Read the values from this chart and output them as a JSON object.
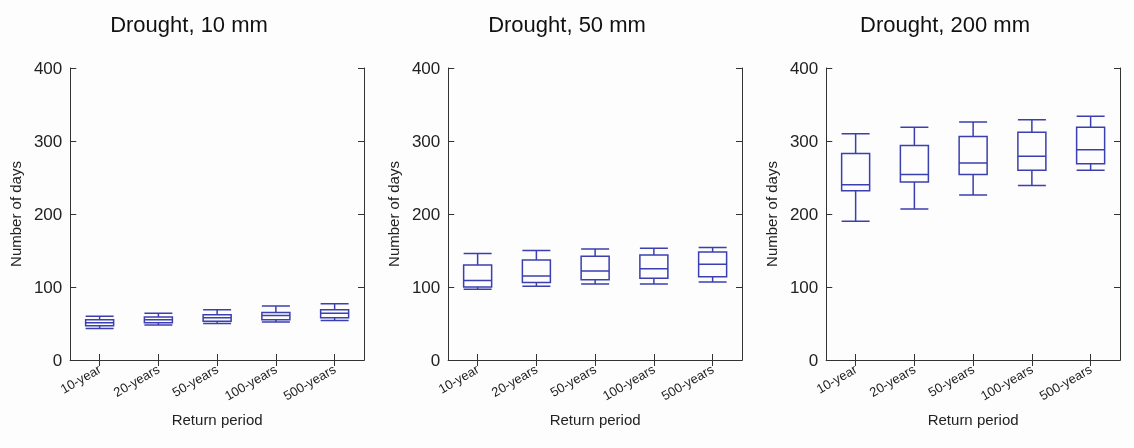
{
  "chart_data": [
    {
      "type": "box",
      "title": "Drought, 10 mm",
      "xlabel": "Return period",
      "ylabel": "Number of days",
      "categories": [
        "10-year",
        "20-years",
        "50-years",
        "100-years",
        "500-years"
      ],
      "ylim": [
        0,
        400
      ],
      "yticks": [
        0,
        100,
        200,
        300,
        400
      ],
      "grid": false,
      "series": [
        {
          "color": "#3b3fb0",
          "boxes": [
            {
              "low": 43,
              "q1": 47,
              "median": 51,
              "q3": 55,
              "high": 60
            },
            {
              "low": 48,
              "q1": 51,
              "median": 55,
              "q3": 59,
              "high": 64
            },
            {
              "low": 50,
              "q1": 53,
              "median": 58,
              "q3": 62,
              "high": 69
            },
            {
              "low": 52,
              "q1": 55,
              "median": 61,
              "q3": 65,
              "high": 74
            },
            {
              "low": 54,
              "q1": 58,
              "median": 64,
              "q3": 69,
              "high": 77
            }
          ]
        }
      ]
    },
    {
      "type": "box",
      "title": "Drought, 50 mm",
      "xlabel": "Return period",
      "ylabel": "Number of days",
      "categories": [
        "10-year",
        "20-years",
        "50-years",
        "100-years",
        "500-years"
      ],
      "ylim": [
        0,
        400
      ],
      "yticks": [
        0,
        100,
        200,
        300,
        400
      ],
      "grid": false,
      "series": [
        {
          "color": "#3b3fb0",
          "boxes": [
            {
              "low": 97,
              "q1": 100,
              "median": 109,
              "q3": 130,
              "high": 146
            },
            {
              "low": 101,
              "q1": 106,
              "median": 115,
              "q3": 137,
              "high": 150
            },
            {
              "low": 104,
              "q1": 110,
              "median": 122,
              "q3": 142,
              "high": 152
            },
            {
              "low": 104,
              "q1": 112,
              "median": 125,
              "q3": 144,
              "high": 153
            },
            {
              "low": 107,
              "q1": 114,
              "median": 131,
              "q3": 148,
              "high": 154
            }
          ]
        }
      ]
    },
    {
      "type": "box",
      "title": "Drought, 200 mm",
      "xlabel": "Return period",
      "ylabel": "Number of days",
      "categories": [
        "10-year",
        "20-years",
        "50-years",
        "100-years",
        "500-years"
      ],
      "ylim": [
        0,
        400
      ],
      "yticks": [
        0,
        100,
        200,
        300,
        400
      ],
      "grid": false,
      "series": [
        {
          "color": "#3b3fb0",
          "boxes": [
            {
              "low": 190,
              "q1": 232,
              "median": 240,
              "q3": 283,
              "high": 310
            },
            {
              "low": 207,
              "q1": 244,
              "median": 254,
              "q3": 294,
              "high": 319
            },
            {
              "low": 226,
              "q1": 254,
              "median": 270,
              "q3": 306,
              "high": 326
            },
            {
              "low": 239,
              "q1": 260,
              "median": 279,
              "q3": 312,
              "high": 329
            },
            {
              "low": 260,
              "q1": 269,
              "median": 288,
              "q3": 319,
              "high": 334
            }
          ]
        }
      ]
    }
  ]
}
